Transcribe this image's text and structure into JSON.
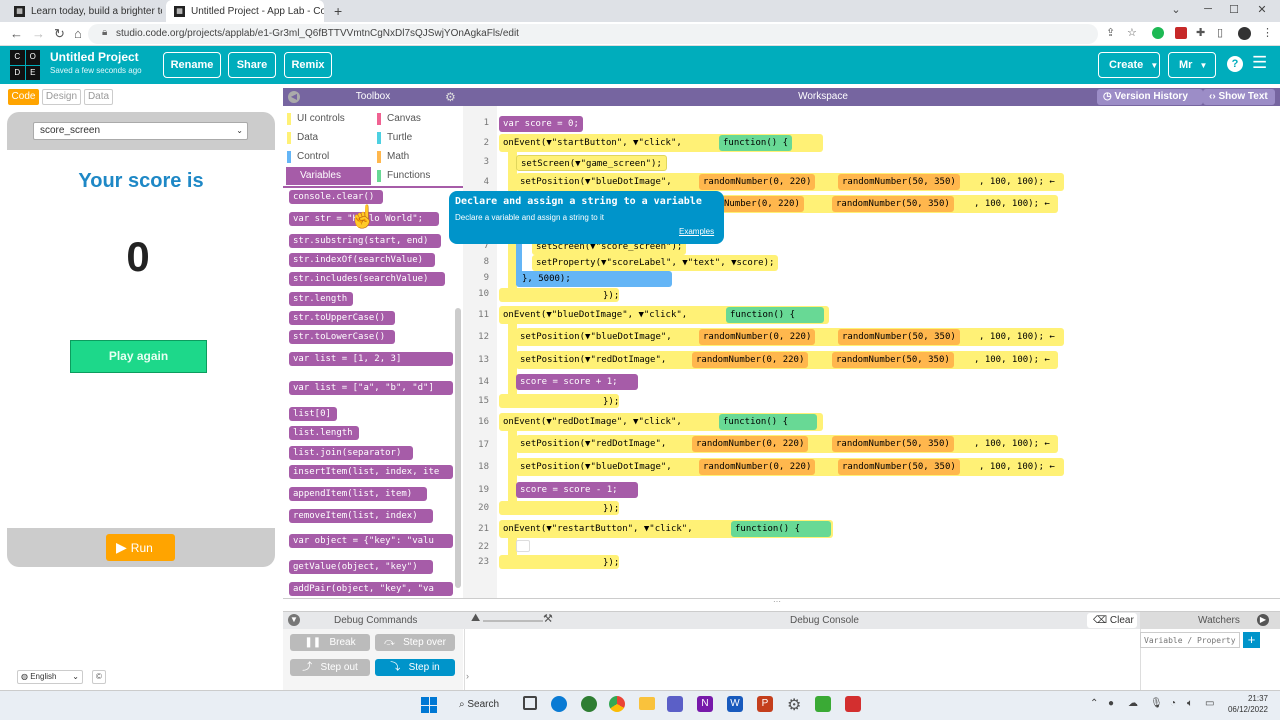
{
  "browser": {
    "tabs": [
      {
        "title": "Learn today, build a brighter tom",
        "close": "✕"
      },
      {
        "title": "Untitled Project - App Lab - Code",
        "close": "✕"
      }
    ],
    "new_tab": "+",
    "url": "studio.code.org/projects/applab/e1-Gr3ml_Q6fBTTVVmtnCgNxDl7sQJSwjYOnAgkaFls/edit",
    "window_controls": [
      "⌄",
      "─",
      "☐",
      "✕"
    ]
  },
  "header": {
    "logo_letters": [
      "C",
      "O",
      "D",
      "E"
    ],
    "project_title": "Untitled Project",
    "saved": "Saved a few seconds ago",
    "buttons": {
      "rename": "Rename",
      "share": "Share",
      "remix": "Remix"
    },
    "create": "Create",
    "user": "Mr",
    "help": "?",
    "menu": "☰"
  },
  "app": {
    "mode_tabs": [
      "Code",
      "Design",
      "Data"
    ],
    "screen_select": "score_screen",
    "score_title": "Your score is",
    "score_value": "0",
    "play_again": "Play again",
    "run": "Run",
    "language": "English"
  },
  "toolbox": {
    "title": "Toolbox",
    "categories": [
      {
        "label": "UI controls",
        "color": "#fff176"
      },
      {
        "label": "Canvas",
        "color": "#f06292"
      },
      {
        "label": "Data",
        "color": "#fff176"
      },
      {
        "label": "Turtle",
        "color": "#4dd0e1"
      },
      {
        "label": "Control",
        "color": "#64b5f6"
      },
      {
        "label": "Math",
        "color": "#ffb74d"
      },
      {
        "label": "Variables",
        "color": "#a65ca8"
      },
      {
        "label": "Functions",
        "color": "#68d995"
      }
    ],
    "blocks": [
      "console.clear()",
      "var str = \"Hello World\";",
      "str.substring(start, end)",
      "str.indexOf(searchValue)",
      "str.includes(searchValue)",
      "str.length",
      "str.toUpperCase()",
      "str.toLowerCase()",
      "var list = [1, 2, 3]",
      "var list = [\"a\", \"b\", \"d\"]",
      "list[0]",
      "list.length",
      "list.join(separator)",
      "insertItem(list, index, ite",
      "appendItem(list, item)",
      "removeItem(list, index)",
      "var object = {\"key\": \"valu",
      "getValue(object, \"key\")",
      "addPair(object, \"key\", \"va"
    ]
  },
  "tooltip": {
    "title": "Declare and assign a string to a variable",
    "desc": "Declare a variable and assign a string to it",
    "link": "Examples"
  },
  "workspace": {
    "title": "Workspace",
    "version_history": "Version History",
    "show_text": "Show Text",
    "line_numbers": [
      "1",
      "2",
      "3",
      "4",
      "5",
      "6",
      "7",
      "8",
      "9",
      "10",
      "11",
      "12",
      "13",
      "14",
      "15",
      "16",
      "17",
      "18",
      "19",
      "20",
      "21",
      "22",
      "23"
    ],
    "lines": {
      "l1": "var score = 0;",
      "l2a": "onEvent(▼\"startButton\", ▼\"click\",",
      "l2b": "function() {",
      "l3": "setScreen(▼\"game_screen\");",
      "l4a": "setPosition(▼\"blueDotImage\",",
      "l4b": "randomNumber(0, 220)",
      "l4c": "randomNumber(50, 350)",
      "l4d": ", 100, 100); ←",
      "l5b": "Number(0, 220)",
      "l5c": "randomNumber(50, 350)",
      "l5d": ", 100, 100); ←",
      "l7": "setScreen(▼\"score_screen\");",
      "l8": "setProperty(▼\"scoreLabel\", ▼\"text\", ▼score);",
      "l9": "}, 5000);",
      "l10": "});",
      "l11a": "onEvent(▼\"blueDotImage\", ▼\"click\",",
      "l11b": "function() {",
      "l12a": "setPosition(▼\"blueDotImage\",",
      "l12b": "randomNumber(0, 220)",
      "l12c": "randomNumber(50, 350)",
      "l12d": ", 100, 100); ←",
      "l13a": "setPosition(▼\"redDotImage\",",
      "l13b": "randomNumber(0, 220)",
      "l13c": "randomNumber(50, 350)",
      "l13d": ", 100, 100); ←",
      "l14": "score = score + 1;",
      "l15": "});",
      "l16a": "onEvent(▼\"redDotImage\", ▼\"click\",",
      "l16b": "function() {",
      "l17a": "setPosition(▼\"redDotImage\",",
      "l17b": "randomNumber(0, 220)",
      "l17c": "randomNumber(50, 350)",
      "l17d": ", 100, 100); ←",
      "l18a": "setPosition(▼\"blueDotImage\",",
      "l18b": "randomNumber(0, 220)",
      "l18c": "randomNumber(50, 350)",
      "l18d": ", 100, 100); ←",
      "l19": "score = score - 1;",
      "l20": "});",
      "l21a": "onEvent(▼\"restartButton\", ▼\"click\",",
      "l21b": "function() {",
      "l23": "});"
    }
  },
  "debug": {
    "commands": "Debug Commands",
    "console": "Debug Console",
    "clear": "Clear",
    "watchers": "Watchers",
    "watch_placeholder": "Variable / Property",
    "break": "Break",
    "step_over": "Step over",
    "step_out": "Step out",
    "step_in": "Step in"
  },
  "taskbar": {
    "search": "Search",
    "time": "21:37",
    "date": "06/12/2022"
  }
}
